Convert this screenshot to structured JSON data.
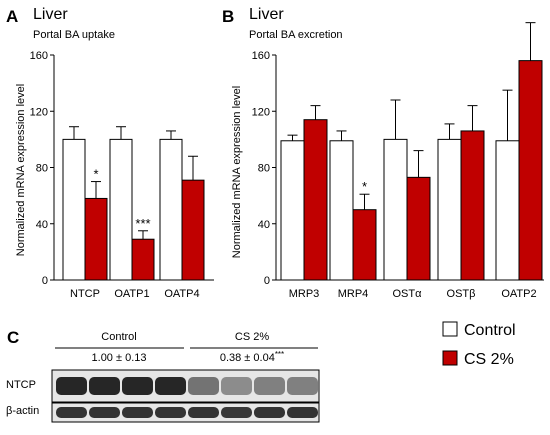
{
  "panels": [
    {
      "letter": "A",
      "title": "Liver",
      "subtitle": "Portal BA uptake",
      "ylabel": "Normalized mRNA expression level"
    },
    {
      "letter": "B",
      "title": "Liver",
      "subtitle": "Portal BA excretion",
      "ylabel": "Normalized mRNA expression level"
    }
  ],
  "legend": [
    {
      "label": "Control",
      "color": "#ffffff"
    },
    {
      "label": "CS 2%",
      "color": "#c00000"
    }
  ],
  "chart_data": [
    {
      "type": "bar",
      "title": "Liver",
      "subtitle": "Portal BA uptake",
      "xlabel": "",
      "ylabel": "Normalized mRNA expression level",
      "ylim": [
        0,
        160
      ],
      "yticks": [
        0,
        40,
        80,
        120,
        160
      ],
      "categories": [
        "NTCP",
        "OATP1",
        "OATP4"
      ],
      "series": [
        {
          "name": "Control",
          "color": "#ffffff",
          "values": [
            100,
            100,
            100
          ],
          "errors": [
            9,
            9,
            6
          ]
        },
        {
          "name": "CS 2%",
          "color": "#c00000",
          "values": [
            58,
            29,
            71
          ],
          "errors": [
            12,
            6,
            17
          ]
        }
      ],
      "significance": [
        "*",
        "***",
        ""
      ],
      "grid": false,
      "legend": "right"
    },
    {
      "type": "bar",
      "title": "Liver",
      "subtitle": "Portal BA excretion",
      "xlabel": "",
      "ylabel": "Normalized mRNA expression level",
      "ylim": [
        0,
        160
      ],
      "yticks": [
        0,
        40,
        80,
        120,
        160
      ],
      "categories": [
        "MRP3",
        "MRP4",
        "OSTα",
        "OSTβ",
        "OATP2"
      ],
      "series": [
        {
          "name": "Control",
          "color": "#ffffff",
          "values": [
            99,
            99,
            100,
            100,
            99
          ],
          "errors": [
            4,
            7,
            28,
            11,
            36
          ]
        },
        {
          "name": "CS 2%",
          "color": "#c00000",
          "values": [
            114,
            50,
            73,
            106,
            156
          ],
          "errors": [
            10,
            11,
            19,
            18,
            27
          ]
        }
      ],
      "significance": [
        "",
        "*",
        "",
        "",
        ""
      ],
      "grid": false,
      "legend": "right"
    }
  ],
  "blot": {
    "letter": "C",
    "groups": [
      {
        "name": "Control",
        "quant": "1.00 ± 0.13",
        "significance": ""
      },
      {
        "name": "CS 2%",
        "quant": "0.38 ± 0.04",
        "significance": "***"
      }
    ],
    "rows": [
      "NTCP",
      "β-actin"
    ],
    "ntcp_intensity": [
      0.85,
      0.85,
      0.85,
      0.85,
      0.55,
      0.45,
      0.5,
      0.5
    ],
    "actin_intensity": [
      0.8,
      0.8,
      0.8,
      0.8,
      0.8,
      0.78,
      0.8,
      0.8
    ]
  }
}
